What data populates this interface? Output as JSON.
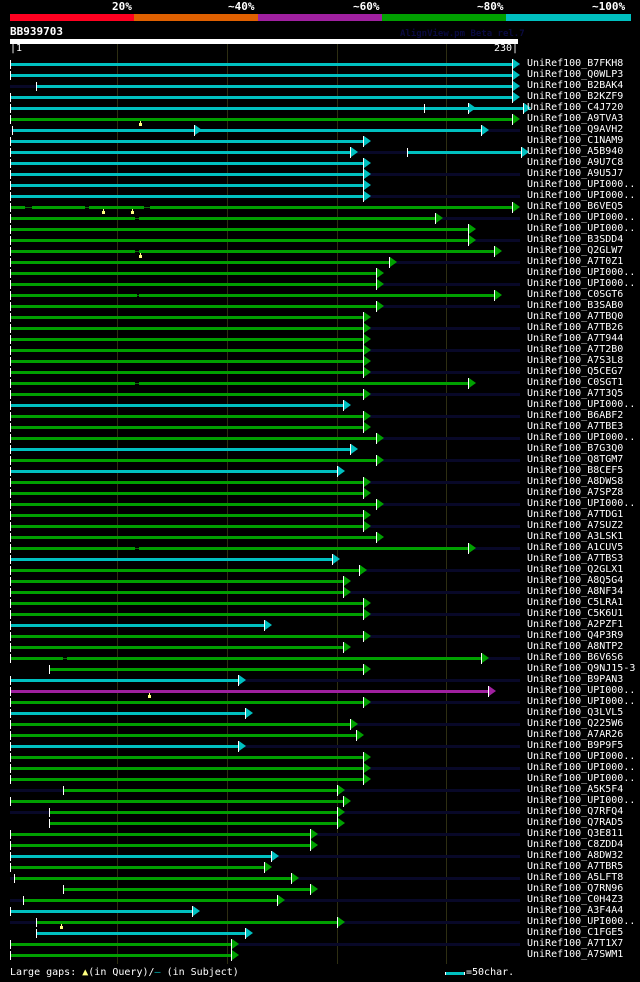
{
  "legend": {
    "labels": [
      "20%",
      "~40%",
      "~60%",
      "~80%",
      "~100%"
    ],
    "colors": [
      "#ff0020",
      "#e06000",
      "#a020a0",
      "#00a000",
      "#00c0c0"
    ]
  },
  "query": {
    "name": "BB939703",
    "watermark": "AlignView.pm Beta rel.7",
    "start_label": "|1",
    "end_label": "230|",
    "length": 230
  },
  "grid_interval": 50,
  "footer": {
    "prefix": "Large gaps: ",
    "query_gap_text": "(in Query)/",
    "subject_gap_symbol": "–",
    "subject_gap_text": " (in Subject)",
    "scale_text": "=50char."
  },
  "hits": [
    {
      "name": "UniRef100_B7FKH8",
      "color": "cyan",
      "segs": [
        [
          1,
          230
        ]
      ],
      "stripe": true
    },
    {
      "name": "UniRef100_Q0WLP3",
      "color": "cyan",
      "segs": [
        [
          1,
          230
        ]
      ],
      "stripe": false
    },
    {
      "name": "UniRef100_B2BAK4",
      "color": "cyan",
      "segs": [
        [
          13,
          230
        ]
      ],
      "stripe": true
    },
    {
      "name": "UniRef100_B2KZF9",
      "color": "cyan",
      "segs": [
        [
          1,
          230
        ]
      ],
      "stripe": false
    },
    {
      "name": "UniRef100_C4J720",
      "color": "cyan",
      "segs": [
        [
          1,
          210
        ],
        [
          190,
          235
        ]
      ],
      "stripe": true
    },
    {
      "name": "UniRef100_A9TVA3",
      "color": "green",
      "segs": [
        [
          1,
          230
        ]
      ],
      "gapq": [
        60
      ],
      "stripe": false
    },
    {
      "name": "UniRef100_Q9AVH2",
      "color": "cyan",
      "segs": [
        [
          2,
          85
        ],
        [
          85,
          216
        ]
      ],
      "stripe": true
    },
    {
      "name": "UniRef100_C1NAM9",
      "color": "cyan",
      "segs": [
        [
          1,
          162
        ]
      ],
      "stripe": false
    },
    {
      "name": "UniRef100_A5B940",
      "color": "cyan",
      "segs": [
        [
          1,
          156
        ],
        [
          182,
          234
        ]
      ],
      "stripe": true
    },
    {
      "name": "UniRef100_A9U7C8",
      "color": "cyan",
      "segs": [
        [
          1,
          162
        ]
      ],
      "stripe": false
    },
    {
      "name": "UniRef100_A9U5J7",
      "color": "cyan",
      "segs": [
        [
          1,
          162
        ]
      ],
      "stripe": true
    },
    {
      "name": "UniRef100_UPI000..",
      "color": "cyan",
      "segs": [
        [
          1,
          162
        ]
      ],
      "stripe": false
    },
    {
      "name": "UniRef100_UPI000..",
      "color": "cyan",
      "segs": [
        [
          1,
          162
        ]
      ],
      "stripe": true
    },
    {
      "name": "UniRef100_B6VEQ5",
      "color": "green",
      "segs": [
        [
          1,
          230
        ]
      ],
      "gaps": [
        [
          8,
          11
        ],
        [
          35,
          37
        ],
        [
          62,
          65
        ]
      ],
      "gapq": [
        43,
        56
      ],
      "stripe": false
    },
    {
      "name": "UniRef100_UPI000..",
      "color": "green",
      "segs": [
        [
          1,
          195
        ]
      ],
      "gaps": [
        [
          58,
          60
        ]
      ],
      "stripe": true
    },
    {
      "name": "UniRef100_UPI000..",
      "color": "green",
      "segs": [
        [
          1,
          210
        ]
      ],
      "stripe": false
    },
    {
      "name": "UniRef100_B3SDD4",
      "color": "green",
      "segs": [
        [
          1,
          210
        ]
      ],
      "stripe": true
    },
    {
      "name": "UniRef100_Q2GLW7",
      "color": "green",
      "segs": [
        [
          1,
          222
        ]
      ],
      "gaps": [
        [
          58,
          60
        ]
      ],
      "gapq": [
        60
      ],
      "stripe": false
    },
    {
      "name": "UniRef100_A7T0Z1",
      "color": "green",
      "segs": [
        [
          1,
          174
        ]
      ],
      "stripe": true
    },
    {
      "name": "UniRef100_UPI000..",
      "color": "green",
      "segs": [
        [
          1,
          168
        ]
      ],
      "stripe": false
    },
    {
      "name": "UniRef100_UPI000..",
      "color": "green",
      "segs": [
        [
          1,
          168
        ]
      ],
      "stripe": true
    },
    {
      "name": "UniRef100_C0SGT6",
      "color": "green",
      "segs": [
        [
          1,
          222
        ]
      ],
      "gaps": [
        [
          59,
          60
        ]
      ],
      "stripe": false
    },
    {
      "name": "UniRef100_B3SAB0",
      "color": "green",
      "segs": [
        [
          1,
          168
        ]
      ],
      "stripe": true
    },
    {
      "name": "UniRef100_A7TBQ0",
      "color": "green",
      "segs": [
        [
          1,
          162
        ]
      ],
      "stripe": false
    },
    {
      "name": "UniRef100_A7TB26",
      "color": "green",
      "segs": [
        [
          1,
          162
        ]
      ],
      "stripe": true
    },
    {
      "name": "UniRef100_A7T944",
      "color": "green",
      "segs": [
        [
          1,
          162
        ]
      ],
      "stripe": false
    },
    {
      "name": "UniRef100_A7T2B0",
      "color": "green",
      "segs": [
        [
          1,
          162
        ]
      ],
      "stripe": true
    },
    {
      "name": "UniRef100_A7S3L8",
      "color": "green",
      "segs": [
        [
          1,
          162
        ]
      ],
      "stripe": false
    },
    {
      "name": "UniRef100_Q5CEG7",
      "color": "green",
      "segs": [
        [
          1,
          162
        ]
      ],
      "stripe": true
    },
    {
      "name": "UniRef100_C0SGT1",
      "color": "green",
      "segs": [
        [
          1,
          210
        ]
      ],
      "gaps": [
        [
          58,
          60
        ]
      ],
      "stripe": false
    },
    {
      "name": "UniRef100_A7T3Q5",
      "color": "green",
      "segs": [
        [
          1,
          162
        ]
      ],
      "stripe": true
    },
    {
      "name": "UniRef100_UPI000..",
      "color": "cyan",
      "segs": [
        [
          1,
          153
        ]
      ],
      "stripe": false
    },
    {
      "name": "UniRef100_B6ABF2",
      "color": "green",
      "segs": [
        [
          1,
          162
        ]
      ],
      "stripe": true
    },
    {
      "name": "UniRef100_A7TBE3",
      "color": "green",
      "segs": [
        [
          1,
          162
        ]
      ],
      "stripe": false
    },
    {
      "name": "UniRef100_UPI000..",
      "color": "green",
      "segs": [
        [
          1,
          168
        ]
      ],
      "stripe": true
    },
    {
      "name": "UniRef100_B7G3Q0",
      "color": "cyan",
      "segs": [
        [
          1,
          156
        ]
      ],
      "stripe": false
    },
    {
      "name": "UniRef100_Q8TGM7",
      "color": "green",
      "segs": [
        [
          1,
          168
        ]
      ],
      "stripe": true
    },
    {
      "name": "UniRef100_B8CEF5",
      "color": "cyan",
      "segs": [
        [
          1,
          150
        ]
      ],
      "stripe": false
    },
    {
      "name": "UniRef100_A8DWS8",
      "color": "green",
      "segs": [
        [
          1,
          162
        ]
      ],
      "stripe": true
    },
    {
      "name": "UniRef100_A7SPZ8",
      "color": "green",
      "segs": [
        [
          1,
          162
        ]
      ],
      "stripe": false
    },
    {
      "name": "UniRef100_UPI000..",
      "color": "green",
      "segs": [
        [
          1,
          168
        ]
      ],
      "stripe": true
    },
    {
      "name": "UniRef100_A7TDG1",
      "color": "green",
      "segs": [
        [
          1,
          162
        ]
      ],
      "stripe": false
    },
    {
      "name": "UniRef100_A7SUZ2",
      "color": "green",
      "segs": [
        [
          1,
          162
        ]
      ],
      "stripe": true
    },
    {
      "name": "UniRef100_A3LSK1",
      "color": "green",
      "segs": [
        [
          1,
          168
        ]
      ],
      "stripe": false
    },
    {
      "name": "UniRef100_A1CUV5",
      "color": "green",
      "segs": [
        [
          1,
          210
        ]
      ],
      "gaps": [
        [
          58,
          60
        ]
      ],
      "stripe": true
    },
    {
      "name": "UniRef100_A7TBS3",
      "color": "cyan",
      "segs": [
        [
          1,
          148
        ]
      ],
      "stripe": false
    },
    {
      "name": "UniRef100_Q2GLX1",
      "color": "green",
      "segs": [
        [
          1,
          160
        ]
      ],
      "stripe": true
    },
    {
      "name": "UniRef100_A8Q5G4",
      "color": "green",
      "segs": [
        [
          1,
          153
        ]
      ],
      "stripe": false
    },
    {
      "name": "UniRef100_A8NF34",
      "color": "green",
      "segs": [
        [
          1,
          153
        ]
      ],
      "stripe": true
    },
    {
      "name": "UniRef100_C5LRA1",
      "color": "green",
      "segs": [
        [
          1,
          162
        ]
      ],
      "stripe": false
    },
    {
      "name": "UniRef100_C5K6U1",
      "color": "green",
      "segs": [
        [
          1,
          162
        ]
      ],
      "stripe": true
    },
    {
      "name": "UniRef100_A2PZF1",
      "color": "cyan",
      "segs": [
        [
          1,
          117
        ]
      ],
      "stripe": false
    },
    {
      "name": "UniRef100_Q4P3R9",
      "color": "green",
      "segs": [
        [
          1,
          162
        ]
      ],
      "stripe": true
    },
    {
      "name": "UniRef100_A8NTP2",
      "color": "green",
      "segs": [
        [
          1,
          153
        ]
      ],
      "stripe": false
    },
    {
      "name": "UniRef100_B6V6S6",
      "color": "green",
      "segs": [
        [
          1,
          216
        ]
      ],
      "gaps": [
        [
          25,
          27
        ]
      ],
      "stripe": true
    },
    {
      "name": "UniRef100_Q9NJ15-3",
      "color": "green",
      "segs": [
        [
          19,
          162
        ]
      ],
      "stripe": false
    },
    {
      "name": "UniRef100_B9PAN3",
      "color": "cyan",
      "segs": [
        [
          1,
          105
        ]
      ],
      "stripe": true
    },
    {
      "name": "UniRef100_UPI000..",
      "color": "magenta",
      "segs": [
        [
          1,
          219
        ]
      ],
      "gapq": [
        64
      ],
      "stripe": false
    },
    {
      "name": "UniRef100_UPI000..",
      "color": "green",
      "segs": [
        [
          1,
          162
        ]
      ],
      "stripe": true
    },
    {
      "name": "UniRef100_Q3LVL5",
      "color": "cyan",
      "segs": [
        [
          1,
          108
        ]
      ],
      "stripe": false
    },
    {
      "name": "UniRef100_Q225W6",
      "color": "green",
      "segs": [
        [
          1,
          156
        ]
      ],
      "stripe": true
    },
    {
      "name": "UniRef100_A7AR26",
      "color": "green",
      "segs": [
        [
          1,
          159
        ]
      ],
      "stripe": false
    },
    {
      "name": "UniRef100_B9P9F5",
      "color": "cyan",
      "segs": [
        [
          1,
          105
        ]
      ],
      "stripe": true
    },
    {
      "name": "UniRef100_UPI000..",
      "color": "green",
      "segs": [
        [
          1,
          162
        ]
      ],
      "stripe": false
    },
    {
      "name": "UniRef100_UPI000..",
      "color": "green",
      "segs": [
        [
          1,
          162
        ]
      ],
      "stripe": true
    },
    {
      "name": "UniRef100_UPI000..",
      "color": "green",
      "segs": [
        [
          1,
          162
        ]
      ],
      "stripe": false
    },
    {
      "name": "UniRef100_A5K5F4",
      "color": "green",
      "segs": [
        [
          25,
          150
        ]
      ],
      "stripe": true
    },
    {
      "name": "UniRef100_UPI000..",
      "color": "green",
      "segs": [
        [
          1,
          153
        ]
      ],
      "stripe": false
    },
    {
      "name": "UniRef100_Q7RFQ4",
      "color": "green",
      "segs": [
        [
          19,
          150
        ]
      ],
      "stripe": true
    },
    {
      "name": "UniRef100_Q7RAD5",
      "color": "green",
      "segs": [
        [
          19,
          150
        ]
      ],
      "stripe": false
    },
    {
      "name": "UniRef100_Q3E811",
      "color": "green",
      "segs": [
        [
          1,
          138
        ]
      ],
      "stripe": true
    },
    {
      "name": "UniRef100_C8ZDD4",
      "color": "green",
      "segs": [
        [
          1,
          138
        ]
      ],
      "stripe": false
    },
    {
      "name": "UniRef100_A8DW32",
      "color": "cyan",
      "segs": [
        [
          1,
          120
        ]
      ],
      "stripe": true
    },
    {
      "name": "UniRef100_A7TBR5",
      "color": "green",
      "segs": [
        [
          1,
          117
        ]
      ],
      "stripe": false
    },
    {
      "name": "UniRef100_A5LFT8",
      "color": "green",
      "segs": [
        [
          3,
          129
        ]
      ],
      "stripe": true
    },
    {
      "name": "UniRef100_Q7RN96",
      "color": "green",
      "segs": [
        [
          25,
          138
        ]
      ],
      "stripe": false
    },
    {
      "name": "UniRef100_C0H4Z3",
      "color": "green",
      "segs": [
        [
          7,
          123
        ]
      ],
      "stripe": true
    },
    {
      "name": "UniRef100_A3F4A4",
      "color": "cyan",
      "segs": [
        [
          1,
          84
        ]
      ],
      "stripe": false
    },
    {
      "name": "UniRef100_UPI000..",
      "color": "green",
      "segs": [
        [
          13,
          150
        ]
      ],
      "gapq": [
        24
      ],
      "stripe": true
    },
    {
      "name": "UniRef100_C1FGE5",
      "color": "cyan",
      "segs": [
        [
          13,
          108
        ]
      ],
      "stripe": false
    },
    {
      "name": "UniRef100_A7T1X7",
      "color": "green",
      "segs": [
        [
          1,
          102
        ]
      ],
      "stripe": true
    },
    {
      "name": "UniRef100_A7SWM1",
      "color": "green",
      "segs": [
        [
          1,
          102
        ]
      ],
      "stripe": false
    }
  ]
}
